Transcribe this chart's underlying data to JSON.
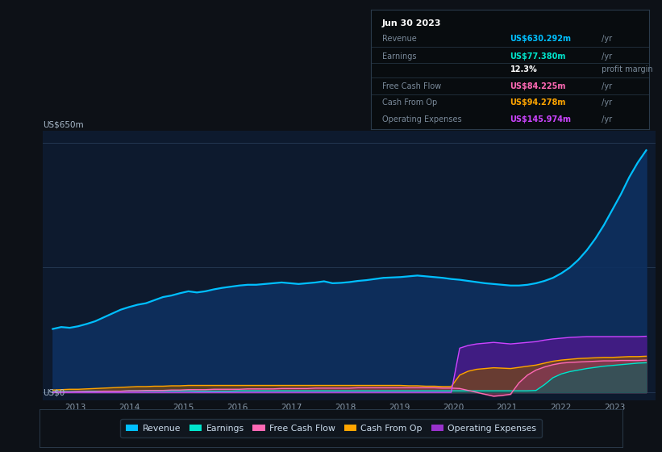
{
  "bg_color": "#0d1117",
  "plot_bg_color": "#0d1a2e",
  "grid_color": "#253a55",
  "y_label": "US$650m",
  "y_zero_label": "US$0",
  "x_ticks": [
    2013,
    2014,
    2015,
    2016,
    2017,
    2018,
    2019,
    2020,
    2021,
    2022,
    2023
  ],
  "legend_items": [
    "Revenue",
    "Earnings",
    "Free Cash Flow",
    "Cash From Op",
    "Operating Expenses"
  ],
  "legend_colors": [
    "#00bfff",
    "#00e5cc",
    "#ff69b4",
    "#ffa500",
    "#9932cc"
  ],
  "info_box_date": "Jun 30 2023",
  "info_rows": [
    {
      "label": "Revenue",
      "value": "US$630.292m",
      "suffix": " /yr",
      "color": "#00bfff",
      "sep": true
    },
    {
      "label": "Earnings",
      "value": "US$77.380m",
      "suffix": " /yr",
      "color": "#00e5cc",
      "sep": false
    },
    {
      "label": "",
      "value": "12.3%",
      "suffix": " profit margin",
      "color": "#ffffff",
      "bold_val": true,
      "sep": true
    },
    {
      "label": "Free Cash Flow",
      "value": "US$84.225m",
      "suffix": " /yr",
      "color": "#ff69b4",
      "sep": true
    },
    {
      "label": "Cash From Op",
      "value": "US$94.278m",
      "suffix": " /yr",
      "color": "#ffa500",
      "sep": true
    },
    {
      "label": "Operating Expenses",
      "value": "US$145.974m",
      "suffix": " /yr",
      "color": "#cc44ff",
      "sep": false
    }
  ],
  "revenue": [
    165,
    170,
    168,
    172,
    178,
    185,
    195,
    205,
    215,
    222,
    228,
    232,
    240,
    248,
    252,
    258,
    263,
    260,
    263,
    268,
    272,
    275,
    278,
    280,
    280,
    282,
    284,
    286,
    284,
    282,
    284,
    286,
    289,
    284,
    285,
    287,
    290,
    292,
    295,
    298,
    299,
    300,
    302,
    304,
    302,
    300,
    298,
    295,
    293,
    290,
    287,
    284,
    282,
    280,
    278,
    278,
    280,
    284,
    290,
    298,
    310,
    325,
    345,
    370,
    400,
    435,
    475,
    515,
    560,
    598,
    630
  ],
  "earnings": [
    2,
    2,
    2,
    2,
    3,
    3,
    3,
    3,
    3,
    4,
    4,
    4,
    4,
    4,
    4,
    4,
    4,
    3,
    3,
    3,
    3,
    3,
    4,
    4,
    4,
    4,
    4,
    4,
    4,
    4,
    4,
    4,
    4,
    4,
    4,
    4,
    4,
    4,
    4,
    4,
    4,
    4,
    4,
    4,
    4,
    4,
    4,
    4,
    4,
    4,
    4,
    4,
    4,
    4,
    4,
    4,
    4,
    5,
    20,
    38,
    48,
    54,
    58,
    62,
    65,
    68,
    70,
    72,
    74,
    76,
    77
  ],
  "free_cash_flow": [
    1,
    1,
    1,
    2,
    2,
    2,
    3,
    3,
    3,
    4,
    4,
    5,
    5,
    5,
    6,
    6,
    7,
    7,
    7,
    8,
    8,
    8,
    8,
    9,
    9,
    9,
    9,
    10,
    10,
    10,
    10,
    11,
    11,
    11,
    11,
    11,
    12,
    12,
    12,
    12,
    12,
    12,
    12,
    12,
    12,
    12,
    11,
    11,
    10,
    5,
    0,
    -5,
    -10,
    -8,
    -5,
    25,
    45,
    58,
    66,
    72,
    76,
    78,
    79,
    80,
    81,
    82,
    82,
    83,
    83,
    83,
    84
  ],
  "cash_from_op": [
    6,
    7,
    8,
    8,
    9,
    10,
    11,
    12,
    13,
    14,
    15,
    15,
    16,
    16,
    17,
    17,
    18,
    18,
    18,
    18,
    18,
    18,
    18,
    18,
    18,
    18,
    18,
    18,
    18,
    18,
    18,
    18,
    18,
    18,
    18,
    18,
    18,
    18,
    18,
    18,
    18,
    18,
    17,
    17,
    16,
    16,
    15,
    15,
    45,
    55,
    60,
    62,
    64,
    63,
    62,
    65,
    68,
    71,
    76,
    81,
    84,
    86,
    88,
    89,
    90,
    91,
    91,
    92,
    93,
    93,
    94
  ],
  "operating_expenses": [
    0,
    0,
    0,
    0,
    0,
    0,
    0,
    0,
    0,
    0,
    0,
    0,
    0,
    0,
    0,
    0,
    0,
    0,
    0,
    0,
    0,
    0,
    0,
    0,
    0,
    0,
    0,
    0,
    0,
    0,
    0,
    0,
    0,
    0,
    0,
    0,
    0,
    0,
    0,
    0,
    0,
    0,
    0,
    0,
    0,
    0,
    0,
    0,
    115,
    122,
    126,
    128,
    130,
    128,
    126,
    128,
    130,
    132,
    136,
    139,
    141,
    143,
    144,
    145,
    145,
    145,
    145,
    145,
    145,
    145,
    146
  ]
}
